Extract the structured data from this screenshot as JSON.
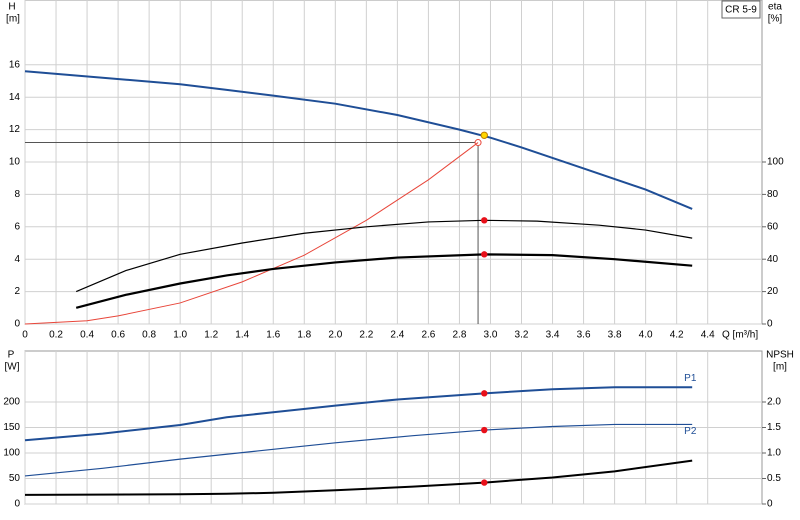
{
  "chart_data": [
    {
      "type": "line",
      "model": "CR 5-9",
      "y_label": "H",
      "y_unit": "[m]",
      "y2_label": "eta",
      "y2_unit": "[%]",
      "x_label": "Q [m³/h]",
      "xlim": [
        0,
        4.75
      ],
      "ylim": [
        0,
        20
      ],
      "y2lim": [
        0,
        200
      ],
      "grid": true,
      "show_xtick_labels": true,
      "xticks": [
        0,
        0.2,
        0.4,
        0.6,
        0.8,
        {
          "value": 1,
          "label": "1.0"
        },
        1.2,
        1.4,
        1.6,
        1.8,
        {
          "value": 2,
          "label": "2.0"
        },
        2.2,
        2.4,
        2.6,
        2.8,
        {
          "value": 3,
          "label": "3.0"
        },
        3.2,
        3.4,
        3.6,
        3.8,
        {
          "value": 4,
          "label": "4.0"
        },
        4.2,
        4.4
      ],
      "yticks": [
        0,
        2,
        4,
        6,
        8,
        10,
        12,
        14,
        16
      ],
      "y2ticks": [
        0,
        20,
        40,
        60,
        80,
        100
      ],
      "duty_point": {
        "x": 2.92,
        "y": 11.2,
        "color": "#e8463a"
      },
      "series": [
        {
          "color": "#1f4e96",
          "width": 2,
          "x": [
            0,
            0.5,
            1.0,
            1.3,
            1.6,
            2.0,
            2.4,
            2.8,
            3.0,
            3.2,
            3.6,
            4.0,
            4.3
          ],
          "values": [
            15.6,
            15.2,
            14.8,
            14.45,
            14.1,
            13.6,
            12.9,
            12.0,
            11.5,
            10.9,
            9.6,
            8.3,
            7.1
          ]
        },
        {
          "color": "#e8463a",
          "width": 1,
          "x": [
            0,
            0.4,
            0.6,
            1.0,
            1.4,
            1.8,
            2.2,
            2.6,
            2.92
          ],
          "values": [
            0,
            0.2,
            0.5,
            1.3,
            2.6,
            4.25,
            6.4,
            8.9,
            11.2
          ]
        },
        {
          "color": "#000000",
          "width": 1.2,
          "axis": "y2",
          "x": [
            0.33,
            0.65,
            1.0,
            1.4,
            1.8,
            2.2,
            2.6,
            2.96,
            3.3,
            3.7,
            4.0,
            4.3
          ],
          "values": [
            20,
            33,
            43,
            50,
            56,
            60,
            63,
            64,
            63.5,
            61,
            58,
            53
          ]
        },
        {
          "color": "#000000",
          "width": 2.2,
          "axis": "y2",
          "x": [
            0.33,
            0.65,
            1.0,
            1.3,
            1.6,
            2.0,
            2.4,
            2.96,
            3.4,
            3.8,
            4.3
          ],
          "values": [
            10,
            18,
            25,
            30,
            34,
            38,
            41,
            43,
            42.5,
            40,
            36
          ]
        },
        {
          "mode": "marker",
          "color": "#ffd700",
          "x": [
            2.96
          ],
          "values": [
            11.65
          ]
        },
        {
          "mode": "marker",
          "color": "#e8101a",
          "axis": "y2",
          "x": [
            2.96,
            2.96
          ],
          "values": [
            64,
            43
          ]
        }
      ]
    },
    {
      "type": "line",
      "y_label": "P",
      "y_unit": "[W]",
      "y2_label": "NPSH",
      "y2_unit": "[m]",
      "xlim": [
        0,
        4.75
      ],
      "ylim": [
        0,
        300
      ],
      "y2lim": [
        0,
        3
      ],
      "grid": true,
      "show_xtick_labels": false,
      "xticks": [
        0,
        0.2,
        0.4,
        0.6,
        0.8,
        1,
        1.2,
        1.4,
        1.6,
        1.8,
        2,
        2.2,
        2.4,
        2.6,
        2.8,
        3,
        3.2,
        3.4,
        3.6,
        3.8,
        4,
        4.2,
        4.4
      ],
      "yticks": [
        0,
        50,
        100,
        150,
        200
      ],
      "y2ticks": [
        0,
        0.5,
        {
          "value": 1,
          "label": "1.0"
        },
        1.5,
        {
          "value": 2,
          "label": "2.0"
        }
      ],
      "series": [
        {
          "name": "P1",
          "color": "#1f4e96",
          "width": 2,
          "x": [
            0,
            0.5,
            1.0,
            1.3,
            1.6,
            2.0,
            2.4,
            2.96,
            3.4,
            3.8,
            4.3
          ],
          "values": [
            125,
            138,
            155,
            170,
            180,
            193,
            205,
            217,
            225,
            229,
            229
          ]
        },
        {
          "name": "P2",
          "color": "#1f4e96",
          "width": 1.2,
          "x": [
            0,
            0.5,
            1.0,
            1.5,
            2.0,
            2.5,
            2.96,
            3.4,
            3.8,
            4.3
          ],
          "values": [
            55,
            70,
            88,
            104,
            120,
            134,
            145,
            152,
            156,
            156
          ]
        },
        {
          "color": "#000000",
          "width": 2,
          "axis": "y2",
          "x": [
            0,
            1.0,
            1.3,
            1.6,
            2.0,
            2.5,
            2.96,
            3.4,
            3.8,
            4.3
          ],
          "values": [
            0.18,
            0.19,
            0.2,
            0.22,
            0.27,
            0.34,
            0.42,
            0.52,
            0.64,
            0.85
          ]
        },
        {
          "mode": "marker",
          "color": "#e8101a",
          "x": [
            2.96,
            2.96
          ],
          "values": [
            217,
            145
          ]
        },
        {
          "mode": "marker",
          "color": "#e8101a",
          "axis": "y2",
          "x": [
            2.96
          ],
          "values": [
            0.42
          ]
        }
      ]
    }
  ]
}
